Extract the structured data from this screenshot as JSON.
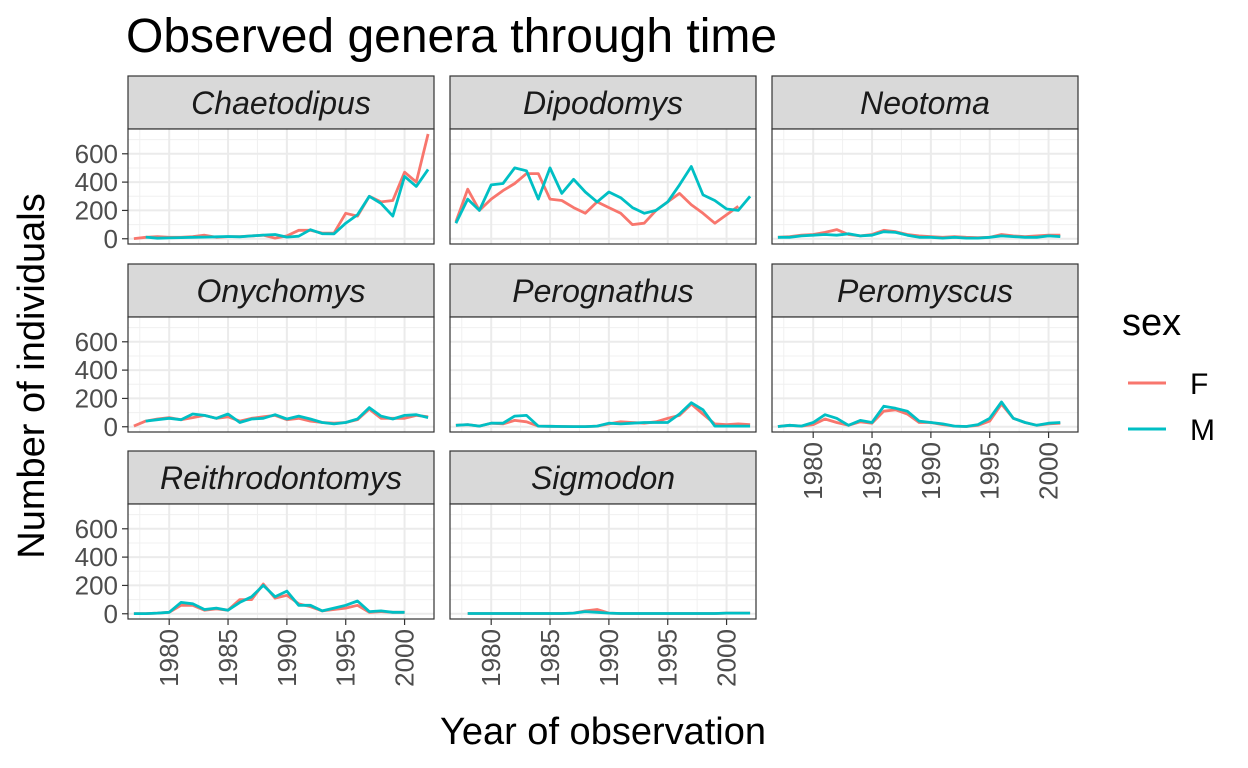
{
  "chart_data": {
    "type": "line",
    "title": "Observed genera through time",
    "xlabel": "Year of observation",
    "ylabel": "Number of individuals",
    "x_ticks": [
      1980,
      1985,
      1990,
      1995,
      2000
    ],
    "xlim": [
      1976.5,
      2002.5
    ],
    "y_ticks": [
      0,
      200,
      400,
      600
    ],
    "ylim": [
      -37,
      775
    ],
    "grid": true,
    "legend": {
      "title": "sex",
      "position": "right",
      "entries": [
        {
          "label": "F",
          "color": "#F8766D"
        },
        {
          "label": "M",
          "color": "#00BFC4"
        }
      ]
    },
    "x": [
      1977,
      1978,
      1979,
      1980,
      1981,
      1982,
      1983,
      1984,
      1985,
      1986,
      1987,
      1988,
      1989,
      1990,
      1991,
      1992,
      1993,
      1994,
      1995,
      1996,
      1997,
      1998,
      1999,
      2000,
      2001,
      2002
    ],
    "panels": [
      {
        "genus": "Chaetodipus",
        "series": [
          {
            "name": "F",
            "values": [
              1,
              10,
              15,
              10,
              10,
              15,
              25,
              10,
              15,
              15,
              20,
              25,
              5,
              20,
              60,
              60,
              40,
              40,
              180,
              160,
              300,
              260,
              270,
              470,
              400,
              740
            ]
          },
          {
            "name": "M",
            "values": [
              null,
              12,
              4,
              6,
              8,
              10,
              12,
              14,
              16,
              14,
              20,
              26,
              30,
              12,
              18,
              64,
              36,
              34,
              110,
              170,
              300,
              250,
              160,
              440,
              370,
              490
            ]
          }
        ]
      },
      {
        "genus": "Dipodomys",
        "series": [
          {
            "name": "F",
            "values": [
              120,
              350,
              200,
              280,
              340,
              390,
              460,
              460,
              280,
              270,
              220,
              180,
              260,
              220,
              180,
              100,
              110,
              200,
              260,
              320,
              240,
              180,
              110,
              170,
              230,
              null
            ]
          },
          {
            "name": "M",
            "values": [
              110,
              280,
              200,
              380,
              390,
              500,
              480,
              280,
              500,
              320,
              420,
              330,
              260,
              330,
              290,
              220,
              180,
              200,
              260,
              380,
              510,
              310,
              270,
              210,
              200,
              300
            ]
          }
        ]
      },
      {
        "genus": "Neotoma",
        "series": [
          {
            "name": "F",
            "values": [
              10,
              15,
              25,
              30,
              45,
              65,
              30,
              20,
              30,
              60,
              50,
              30,
              20,
              15,
              10,
              15,
              10,
              8,
              10,
              30,
              20,
              15,
              20,
              25,
              25,
              null
            ]
          },
          {
            "name": "M",
            "values": [
              10,
              10,
              20,
              25,
              30,
              25,
              35,
              20,
              25,
              50,
              45,
              25,
              10,
              10,
              5,
              10,
              5,
              5,
              10,
              20,
              15,
              10,
              10,
              20,
              15,
              null
            ]
          }
        ]
      },
      {
        "genus": "Onychomys",
        "series": [
          {
            "name": "F",
            "values": [
              5,
              40,
              55,
              65,
              50,
              65,
              80,
              60,
              70,
              40,
              60,
              70,
              80,
              50,
              60,
              40,
              30,
              25,
              30,
              50,
              125,
              60,
              60,
              60,
              80,
              70
            ]
          },
          {
            "name": "M",
            "values": [
              null,
              40,
              50,
              60,
              50,
              90,
              80,
              60,
              90,
              30,
              55,
              60,
              85,
              55,
              75,
              55,
              30,
              20,
              30,
              55,
              135,
              75,
              55,
              80,
              85,
              65
            ]
          }
        ]
      },
      {
        "genus": "Perognathus",
        "series": [
          {
            "name": "F",
            "values": [
              10,
              15,
              5,
              25,
              20,
              45,
              35,
              5,
              3,
              2,
              1,
              1,
              5,
              20,
              35,
              30,
              25,
              35,
              60,
              80,
              160,
              90,
              20,
              15,
              20,
              15
            ]
          },
          {
            "name": "M",
            "values": [
              10,
              15,
              5,
              25,
              25,
              75,
              80,
              5,
              3,
              2,
              1,
              1,
              5,
              25,
              20,
              25,
              30,
              30,
              30,
              90,
              170,
              120,
              5,
              5,
              5,
              5
            ]
          }
        ]
      },
      {
        "genus": "Peromyscus",
        "series": [
          {
            "name": "F",
            "values": [
              2,
              10,
              5,
              15,
              55,
              30,
              10,
              35,
              25,
              110,
              120,
              90,
              30,
              30,
              15,
              5,
              2,
              10,
              40,
              160,
              60,
              30,
              10,
              20,
              25,
              null
            ]
          },
          {
            "name": "M",
            "values": [
              2,
              10,
              5,
              30,
              85,
              60,
              10,
              45,
              30,
              145,
              130,
              110,
              40,
              30,
              20,
              5,
              2,
              15,
              60,
              175,
              60,
              30,
              10,
              25,
              30,
              null
            ]
          }
        ]
      },
      {
        "genus": "Reithrodontomys",
        "series": [
          {
            "name": "F",
            "values": [
              1,
              1,
              5,
              10,
              60,
              60,
              25,
              35,
              25,
              100,
              100,
              210,
              110,
              130,
              70,
              50,
              20,
              30,
              40,
              60,
              10,
              15,
              10,
              10,
              null,
              null
            ]
          },
          {
            "name": "M",
            "values": [
              1,
              1,
              5,
              10,
              80,
              70,
              30,
              40,
              25,
              80,
              120,
              200,
              120,
              160,
              60,
              60,
              20,
              40,
              60,
              90,
              15,
              20,
              10,
              10,
              null,
              null
            ]
          }
        ]
      },
      {
        "genus": "Sigmodon",
        "series": [
          {
            "name": "F",
            "values": [
              null,
              2,
              2,
              2,
              2,
              2,
              2,
              2,
              2,
              2,
              5,
              20,
              30,
              5,
              2,
              2,
              2,
              2,
              2,
              2,
              2,
              2,
              2,
              5,
              5,
              5
            ]
          },
          {
            "name": "M",
            "values": [
              null,
              2,
              2,
              2,
              2,
              2,
              2,
              2,
              2,
              2,
              5,
              15,
              10,
              5,
              2,
              2,
              2,
              2,
              2,
              2,
              2,
              2,
              2,
              5,
              5,
              5
            ]
          }
        ]
      }
    ]
  }
}
